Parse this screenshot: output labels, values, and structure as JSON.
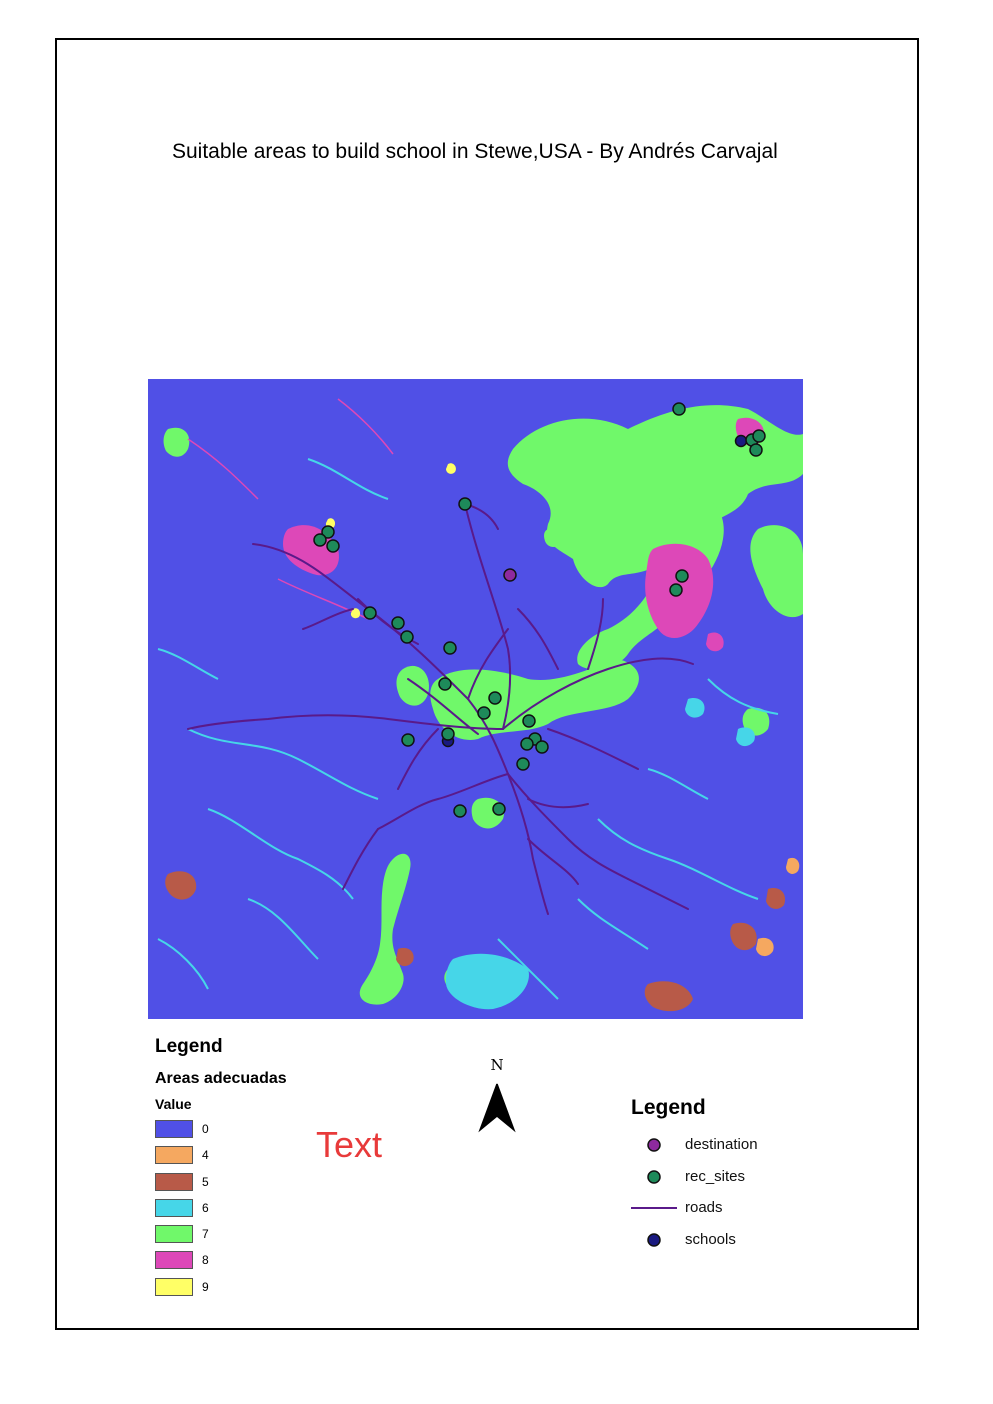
{
  "title": "Suitable areas to build school in Stewe,USA - By Andrés Carvajal",
  "placeholder_text": "Text",
  "north_arrow": {
    "label": "N"
  },
  "raster_legend": {
    "heading": "Legend",
    "layer_name": "Areas adecuadas",
    "field": "Value",
    "classes": [
      {
        "value": "0",
        "color": "#5050e6"
      },
      {
        "value": "4",
        "color": "#f5a860"
      },
      {
        "value": "5",
        "color": "#b85a48"
      },
      {
        "value": "6",
        "color": "#46d6e8"
      },
      {
        "value": "7",
        "color": "#70f86a"
      },
      {
        "value": "8",
        "color": "#dd48b8"
      },
      {
        "value": "9",
        "color": "#ffff66"
      }
    ]
  },
  "feature_legend": {
    "heading": "Legend",
    "items": [
      {
        "label": "destination",
        "symbol": "circle",
        "color": "#8e2a9e"
      },
      {
        "label": "rec_sites",
        "symbol": "circle",
        "color": "#1e8a5a"
      },
      {
        "label": "roads",
        "symbol": "line",
        "color": "#5a1a8a"
      },
      {
        "label": "schools",
        "symbol": "circle",
        "color": "#1a1a80"
      }
    ]
  }
}
